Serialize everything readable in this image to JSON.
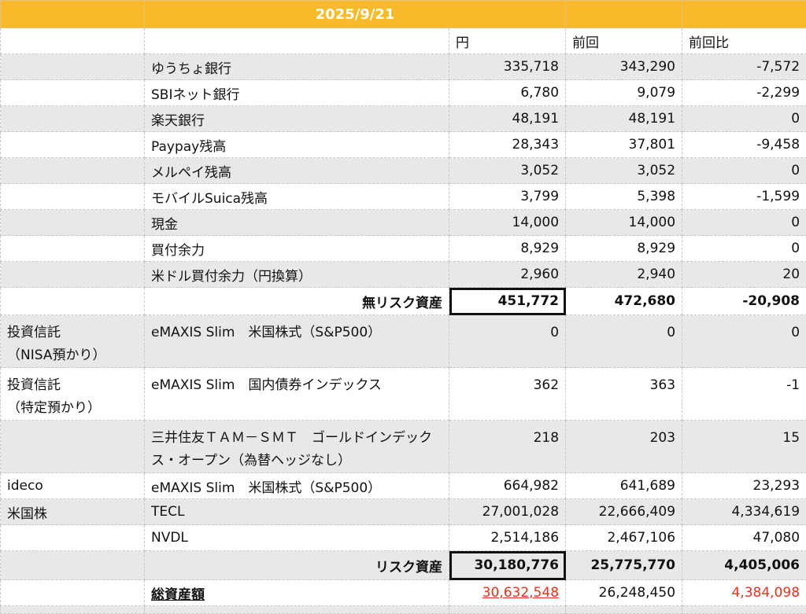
{
  "header": {
    "date": "2025/9/21"
  },
  "columns": {
    "yen": "円",
    "previous": "前回",
    "diff": "前回比"
  },
  "accent_color": "#F7BA2A",
  "highlight_color": "#e8321e",
  "rows": [
    {
      "category": "",
      "name": "ゆうちょ銀行",
      "yen": "335,718",
      "previous": "343,290",
      "diff": "-7,572"
    },
    {
      "category": "",
      "name": "SBIネット銀行",
      "yen": "6,780",
      "previous": "9,079",
      "diff": "-2,299"
    },
    {
      "category": "",
      "name": "楽天銀行",
      "yen": "48,191",
      "previous": "48,191",
      "diff": "0"
    },
    {
      "category": "",
      "name": "Paypay残高",
      "yen": "28,343",
      "previous": "37,801",
      "diff": "-9,458"
    },
    {
      "category": "",
      "name": "メルペイ残高",
      "yen": "3,052",
      "previous": "3,052",
      "diff": "0"
    },
    {
      "category": "",
      "name": "モバイルSuica残高",
      "yen": "3,799",
      "previous": "5,398",
      "diff": "-1,599"
    },
    {
      "category": "",
      "name": "現金",
      "yen": "14,000",
      "previous": "14,000",
      "diff": "0"
    },
    {
      "category": "",
      "name": "買付余力",
      "yen": "8,929",
      "previous": "8,929",
      "diff": "0"
    },
    {
      "category": "",
      "name": "米ドル買付余力（円換算）",
      "yen": "2,960",
      "previous": "2,940",
      "diff": "20"
    }
  ],
  "riskfree_total": {
    "label": "無リスク資産",
    "yen": "451,772",
    "previous": "472,680",
    "diff": "-20,908"
  },
  "risk_rows": [
    {
      "category": "投資信託\n（NISA預かり）",
      "name": "eMAXIS Slim　米国株式（S&P500）",
      "yen": "0",
      "previous": "0",
      "diff": "0"
    },
    {
      "category": "投資信託\n（特定預かり）",
      "name": "eMAXIS Slim　国内債券インデックス",
      "yen": "362",
      "previous": "363",
      "diff": "-1"
    },
    {
      "category": "",
      "name": "三井住友ＴＡＭ－ＳＭＴ　ゴールドインデックス・オープン（為替ヘッジなし）",
      "yen": "218",
      "previous": "203",
      "diff": "15"
    },
    {
      "category": "ideco",
      "name": "eMAXIS Slim　米国株式（S&P500）",
      "yen": "664,982",
      "previous": "641,689",
      "diff": "23,293"
    },
    {
      "category": "米国株",
      "name": "TECL",
      "yen": "27,001,028",
      "previous": "22,666,409",
      "diff": "4,334,619"
    },
    {
      "category": "",
      "name": "NVDL",
      "yen": "2,514,186",
      "previous": "2,467,106",
      "diff": "47,080"
    }
  ],
  "risk_total": {
    "label": "リスク資産",
    "yen": "30,180,776",
    "previous": "25,775,770",
    "diff": "4,405,006"
  },
  "grand_total": {
    "label": "総資産額",
    "yen": "30,632,548",
    "previous": "26,248,450",
    "diff": "4,384,098"
  }
}
